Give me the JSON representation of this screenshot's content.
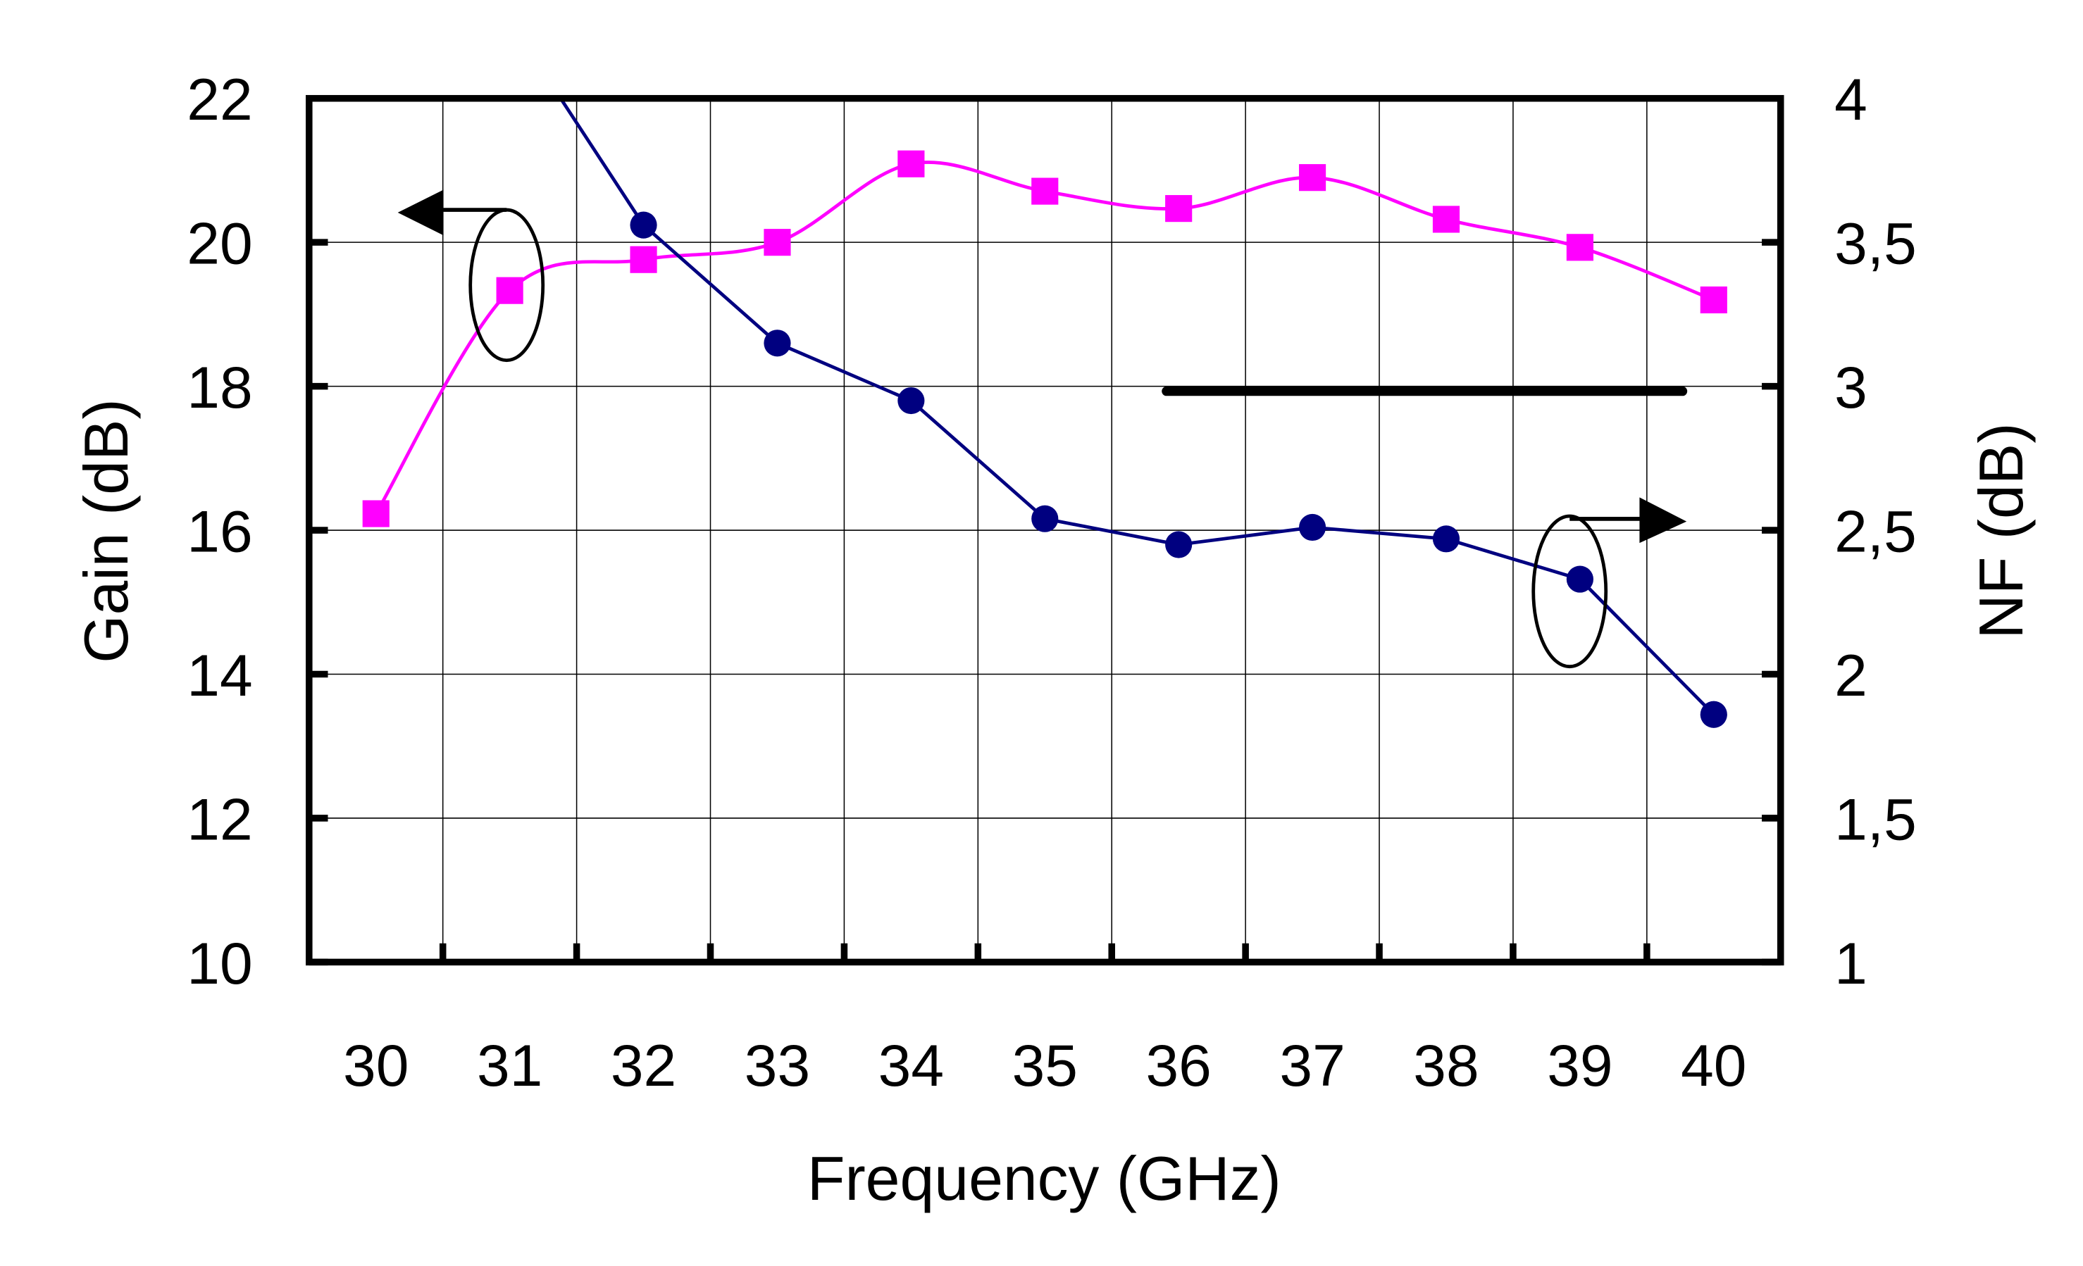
{
  "chart_data": {
    "type": "line",
    "title": "",
    "xlabel": "Frequency (GHz)",
    "ylabel_left": "Gain (dB)",
    "ylabel_right": "NF (dB)",
    "categories": [
      "30",
      "31",
      "32",
      "33",
      "34",
      "35",
      "36",
      "37",
      "38",
      "39",
      "40"
    ],
    "x": [
      30,
      31,
      32,
      33,
      34,
      35,
      36,
      37,
      38,
      39,
      40
    ],
    "ylim_left": [
      10,
      22
    ],
    "yticks_left": [
      "10",
      "12",
      "14",
      "16",
      "18",
      "20",
      "22"
    ],
    "ylim_right": [
      1,
      4
    ],
    "yticks_right": [
      "1",
      "1,5",
      "2",
      "2,5",
      "3",
      "3,5",
      "4"
    ],
    "grid": true,
    "legend": "none",
    "series": [
      {
        "axis": "left",
        "marker": "square",
        "color": "#FF00FF",
        "smooth": true,
        "values": [
          16.23,
          19.33,
          19.76,
          20.0,
          21.09,
          20.71,
          20.47,
          20.9,
          20.32,
          19.93,
          19.2
        ]
      },
      {
        "axis": "right",
        "marker": "circle",
        "color": "#000080",
        "smooth": false,
        "values": [
          null,
          4.27,
          3.56,
          3.15,
          2.95,
          2.54,
          2.45,
          2.51,
          2.47,
          2.33,
          1.86
        ]
      }
    ],
    "annotations": [
      {
        "type": "arrow-left",
        "points_to": "left axis",
        "series": 0
      },
      {
        "type": "arrow-right",
        "points_to": "right axis",
        "series": 1
      },
      {
        "type": "horizontal-bar",
        "color": "#000000"
      }
    ]
  }
}
